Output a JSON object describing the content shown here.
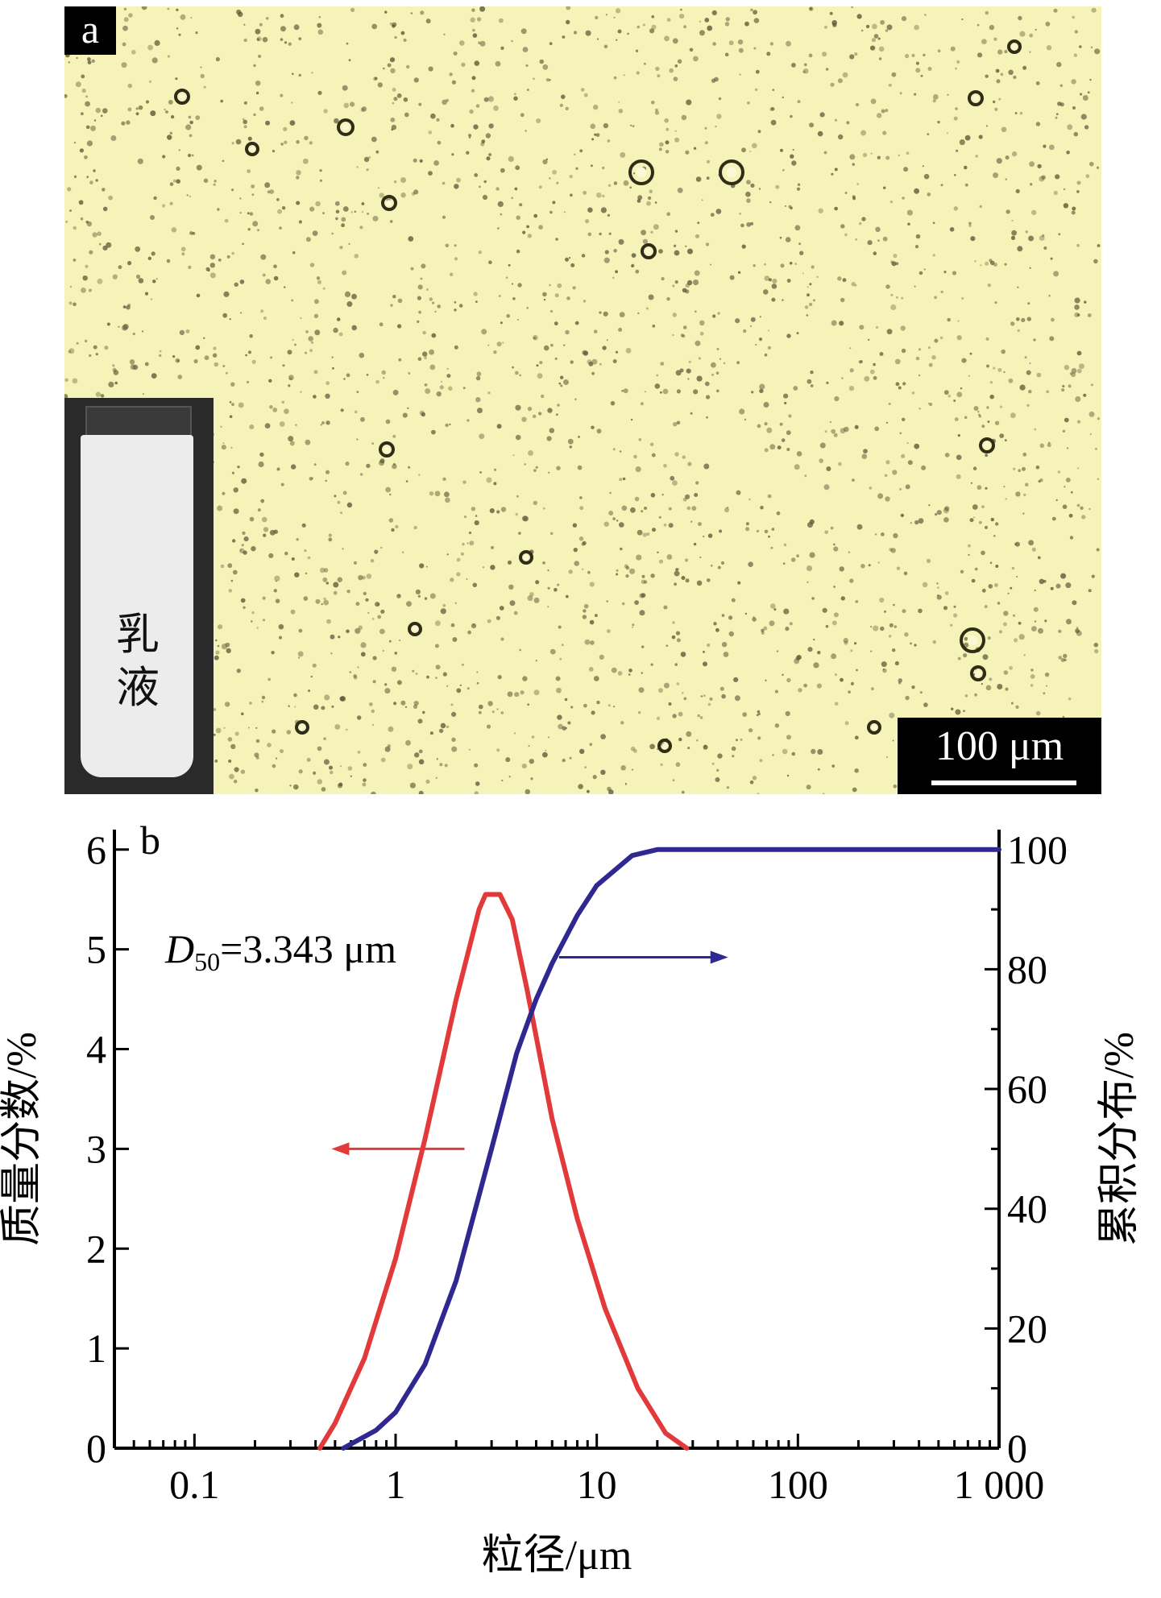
{
  "panel_a": {
    "letter": "a",
    "inset_label": "乳液",
    "scale_bar_label": "100 μm"
  },
  "colors": {
    "micrograph_background": "#f6f3b8",
    "droplet": "#5a5636",
    "mass_fraction_series": "#e23a3a",
    "cumulative_series": "#2e2890"
  },
  "chart_data": {
    "panel_letter": "b",
    "type": "line",
    "x_scale": "log",
    "xlim": [
      0.04,
      1000
    ],
    "xticks": [
      0.1,
      1,
      10,
      100,
      1000
    ],
    "xtick_labels": [
      "0.1",
      "1",
      "10",
      "100",
      "1 000"
    ],
    "xlabel": "粒径/μm",
    "ylabel_left": "质量分数/%",
    "ylabel_right": "累积分布/%",
    "ylim_left": [
      0,
      6.2
    ],
    "ylim_right": [
      0,
      103.33
    ],
    "yticks_left": [
      0,
      1,
      2,
      3,
      4,
      5,
      6
    ],
    "yticks_right": [
      0,
      20,
      40,
      60,
      80,
      100
    ],
    "annotation": {
      "symbol": "D",
      "subscript": "50",
      "text": "=3.343 μm"
    },
    "series": [
      {
        "axis": "left",
        "color": "#e23a3a",
        "points": [
          [
            0.42,
            0
          ],
          [
            0.5,
            0.25
          ],
          [
            0.7,
            0.9
          ],
          [
            1.0,
            1.9
          ],
          [
            1.4,
            3.1
          ],
          [
            2.0,
            4.5
          ],
          [
            2.6,
            5.4
          ],
          [
            2.8,
            5.55
          ],
          [
            3.3,
            5.55
          ],
          [
            3.8,
            5.3
          ],
          [
            4.5,
            4.6
          ],
          [
            6.0,
            3.3
          ],
          [
            8.0,
            2.3
          ],
          [
            11.0,
            1.4
          ],
          [
            16.0,
            0.6
          ],
          [
            22.0,
            0.15
          ],
          [
            28.0,
            0
          ]
        ]
      },
      {
        "axis": "right",
        "color": "#2e2890",
        "points": [
          [
            0.55,
            0
          ],
          [
            0.8,
            3
          ],
          [
            1.0,
            6
          ],
          [
            1.4,
            14
          ],
          [
            2.0,
            28
          ],
          [
            3.0,
            50
          ],
          [
            4.0,
            66
          ],
          [
            5.0,
            75
          ],
          [
            6.0,
            81
          ],
          [
            8.0,
            89
          ],
          [
            10.0,
            94
          ],
          [
            15.0,
            99
          ],
          [
            20.0,
            100
          ],
          [
            50.0,
            100
          ],
          [
            1000.0,
            100
          ]
        ]
      }
    ]
  }
}
